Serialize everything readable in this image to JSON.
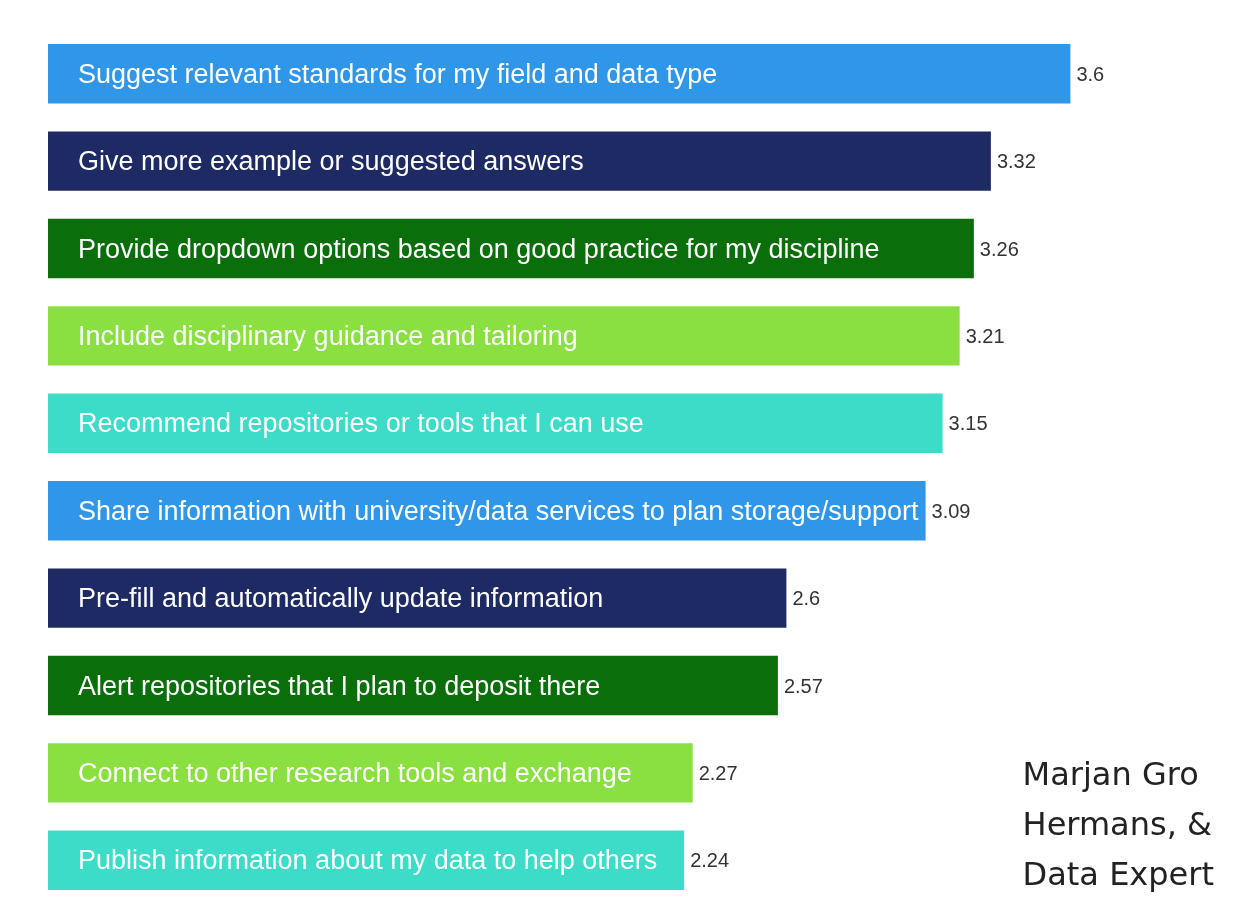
{
  "chart_data": {
    "type": "bar",
    "orientation": "horizontal",
    "categories": [
      "Suggest relevant standards for my field and data type",
      "Give more example or suggested answers",
      "Provide dropdown options based on good practice for my discipline",
      "Include disciplinary guidance and tailoring",
      "Recommend repositories or tools that I can use",
      "Share information with university/data services to plan storage/support",
      "Pre-fill and automatically update information",
      "Alert repositories that I plan to deposit there",
      "Connect to other research tools and exchange",
      "Publish information about my data to help others"
    ],
    "values": [
      3.6,
      3.32,
      3.26,
      3.21,
      3.15,
      3.09,
      2.6,
      2.57,
      2.27,
      2.24
    ],
    "colors": [
      "#3096e8",
      "#1e2a63",
      "#0a6e0a",
      "#8ae041",
      "#3ddcc8",
      "#3096e8",
      "#1e2a63",
      "#0a6e0a",
      "#8ae041",
      "#3ddcc8"
    ],
    "data_labels": true,
    "annotations": [
      "Marjan Gro\nHermans, &\nData Expert"
    ]
  }
}
